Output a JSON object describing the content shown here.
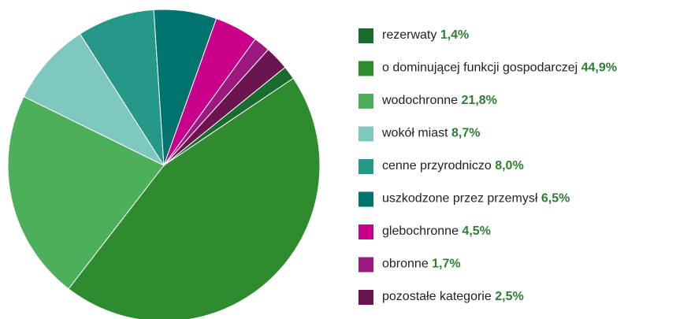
{
  "chart_data": {
    "type": "pie",
    "categories": [
      "rezerwaty",
      "o dominującej funkcji gospodarczej",
      "wodochronne",
      "wokół miast",
      "cenne przyrodniczo",
      "uszkodzone przez przemysł",
      "glebochronne",
      "obronne",
      "pozostałe kategorie"
    ],
    "values": [
      1.4,
      44.9,
      21.8,
      8.7,
      8.0,
      6.5,
      4.5,
      1.7,
      2.5
    ],
    "value_labels": [
      "1,4%",
      "44,9%",
      "21,8%",
      "8,7%",
      "8,0%",
      "6,5%",
      "4,5%",
      "1,7%",
      "2,5%"
    ],
    "colors": [
      "#1a6b2e",
      "#2e8b2e",
      "#4caf5a",
      "#7ec8c0",
      "#26988a",
      "#00736e",
      "#c8008a",
      "#9c1a7e",
      "#6b1550"
    ],
    "legend": "right"
  }
}
